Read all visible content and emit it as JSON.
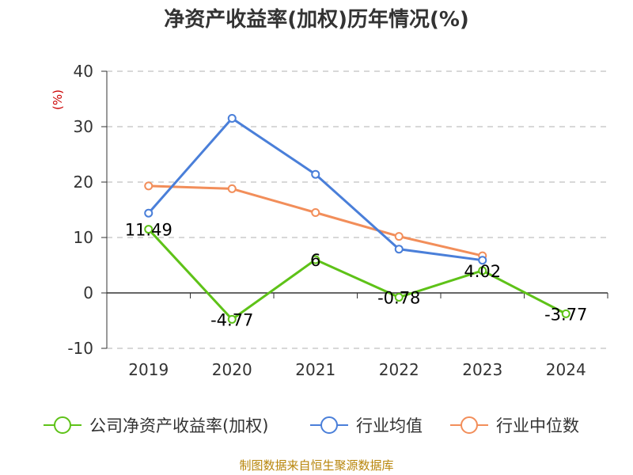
{
  "chart_data": {
    "type": "line",
    "title": "净资产收益率(加权)历年情况(%)",
    "unit_label": "(%)",
    "categories": [
      "2019",
      "2020",
      "2021",
      "2022",
      "2023",
      "2024"
    ],
    "ylim": [
      -10,
      40
    ],
    "yticks": [
      40,
      30,
      20,
      10,
      0,
      -10
    ],
    "grid": true,
    "legend_position": "bottom",
    "series": [
      {
        "name": "公司净资产收益率(加权)",
        "color": "#5ec218",
        "values": [
          11.49,
          -4.77,
          6,
          -0.78,
          4.02,
          -3.77
        ],
        "labels": [
          "11.49",
          "-4.77",
          "6",
          "-0.78",
          "4.02",
          "-3.77"
        ]
      },
      {
        "name": "行业均值",
        "color": "#4a7fd9",
        "values": [
          14.4,
          31.5,
          21.4,
          7.9,
          5.9,
          null
        ],
        "labels": []
      },
      {
        "name": "行业中位数",
        "color": "#f28e5a",
        "values": [
          19.3,
          18.8,
          14.5,
          10.2,
          6.7,
          null
        ],
        "labels": []
      }
    ]
  },
  "source": "制图数据来自恒生聚源数据库"
}
